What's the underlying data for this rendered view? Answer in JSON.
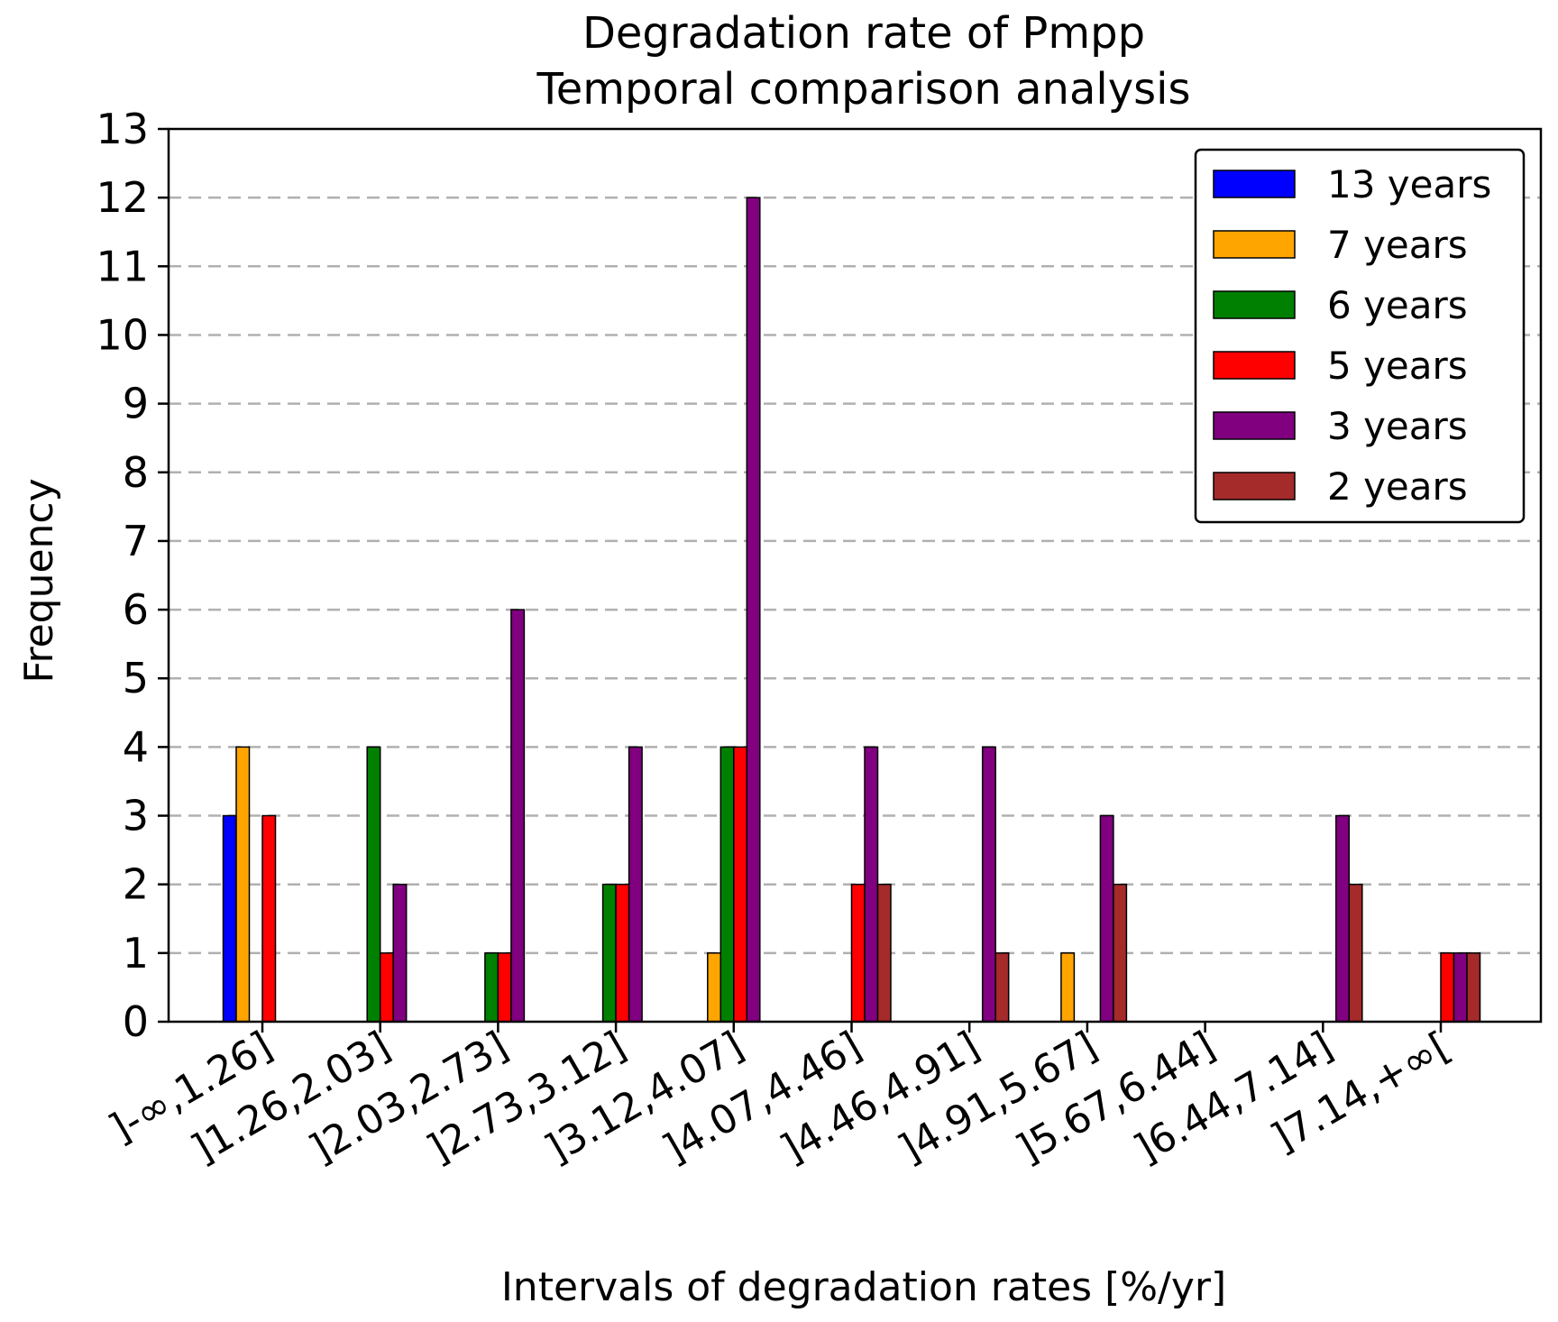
{
  "chart_data": {
    "type": "bar",
    "title": [
      "Degradation rate of Pmpp",
      "Temporal comparison analysis"
    ],
    "xlabel": "Intervals of degradation rates [%/yr]",
    "ylabel": "Frequency",
    "ylim": [
      0,
      13
    ],
    "yticks": [
      "0",
      "1",
      "2",
      "3",
      "4",
      "5",
      "6",
      "7",
      "8",
      "9",
      "10",
      "11",
      "12",
      "13"
    ],
    "grid": "horizontal dashed",
    "legend_position": "top-right",
    "categories": [
      "]-∞,1.26]",
      "]1.26,2.03]",
      "]2.03,2.73]",
      "]2.73,3.12]",
      "]3.12,4.07]",
      "]4.07,4.46]",
      "]4.46,4.91]",
      "]4.91,5.67]",
      "]5.67,6.44]",
      "]6.44,7.14]",
      "]7.14,+∞["
    ],
    "series": [
      {
        "name": "13 years",
        "color": "#0000ff",
        "values": [
          3,
          0,
          0,
          0,
          0,
          0,
          0,
          0,
          0,
          0,
          0
        ]
      },
      {
        "name": "7 years",
        "color": "#ffa500",
        "values": [
          4,
          0,
          0,
          0,
          1,
          0,
          0,
          1,
          0,
          0,
          0
        ]
      },
      {
        "name": "6 years",
        "color": "#008000",
        "values": [
          0,
          4,
          1,
          2,
          4,
          0,
          0,
          0,
          0,
          0,
          0
        ]
      },
      {
        "name": "5 years",
        "color": "#ff0000",
        "values": [
          3,
          1,
          1,
          2,
          4,
          2,
          0,
          0,
          0,
          0,
          1
        ]
      },
      {
        "name": "3 years",
        "color": "#800080",
        "values": [
          0,
          2,
          6,
          4,
          12,
          4,
          4,
          3,
          0,
          3,
          1
        ]
      },
      {
        "name": "2 years",
        "color": "#a52a2a",
        "values": [
          0,
          0,
          0,
          0,
          0,
          2,
          1,
          2,
          0,
          2,
          1
        ]
      }
    ]
  }
}
